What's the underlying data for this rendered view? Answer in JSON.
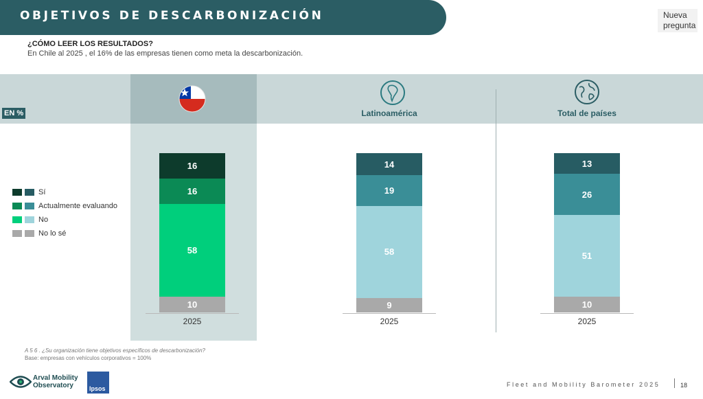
{
  "header": {
    "title": "OBJETIVOS DE DESCARBONIZACIÓN",
    "new_question": [
      "Nueva",
      "pregunta"
    ]
  },
  "howto": {
    "question": "¿CÓMO LEER LOS RESULTADOS?",
    "answer": "En Chile al 2025 , el 16% de las empresas tienen como meta la descarbonización."
  },
  "unit_badge": "EN %",
  "chart_data": {
    "type": "bar",
    "stacked": true,
    "value_unit": "%",
    "columns": [
      {
        "label": "",
        "icon": "chile-flag-icon",
        "year": "2025",
        "segments": [
          {
            "category": "Sí",
            "value": 16,
            "color": "#0d3b2c"
          },
          {
            "category": "Actualmente evaluando",
            "value": 16,
            "color": "#0b8a55"
          },
          {
            "category": "No",
            "value": 58,
            "color": "#00cf7c"
          },
          {
            "category": "No lo sé",
            "value": 10,
            "color": "#a9a9a9"
          }
        ]
      },
      {
        "label": "Latinoamérica",
        "icon": "south-america-icon",
        "year": "2025",
        "segments": [
          {
            "category": "Sí",
            "value": 14,
            "color": "#275c63"
          },
          {
            "category": "Actualmente evaluando",
            "value": 19,
            "color": "#3a8e97"
          },
          {
            "category": "No",
            "value": 58,
            "color": "#9fd4dc"
          },
          {
            "category": "No lo sé",
            "value": 9,
            "color": "#a9a9a9"
          }
        ]
      },
      {
        "label": "Total de países",
        "icon": "globe-icon",
        "year": "2025",
        "segments": [
          {
            "category": "Sí",
            "value": 13,
            "color": "#275c63"
          },
          {
            "category": "Actualmente evaluando",
            "value": 26,
            "color": "#3a8e97"
          },
          {
            "category": "No",
            "value": 51,
            "color": "#9fd4dc"
          },
          {
            "category": "No lo sé",
            "value": 10,
            "color": "#a9a9a9"
          }
        ]
      }
    ],
    "legend": [
      {
        "label": "Sí",
        "colors": [
          "#0d3b2c",
          "#275c63"
        ]
      },
      {
        "label": "Actualmente evaluando",
        "colors": [
          "#0b8a55",
          "#3a8e97"
        ]
      },
      {
        "label": "No",
        "colors": [
          "#00cf7c",
          "#9fd4dc"
        ]
      },
      {
        "label": "No lo sé",
        "colors": [
          "#a9a9a9",
          "#a9a9a9"
        ]
      }
    ]
  },
  "footnote": {
    "question": "A 5 6 . ¿Su organización tiene objetivos específicos de descarbonización?",
    "base": "Base: empresas con vehículos corporativos = 100%"
  },
  "footer": {
    "arval": [
      "Arval Mobility",
      "Observatory"
    ],
    "ipsos": "Ipsos",
    "barometer": "Fleet and Mobility Barometer 2025",
    "page": "18"
  }
}
